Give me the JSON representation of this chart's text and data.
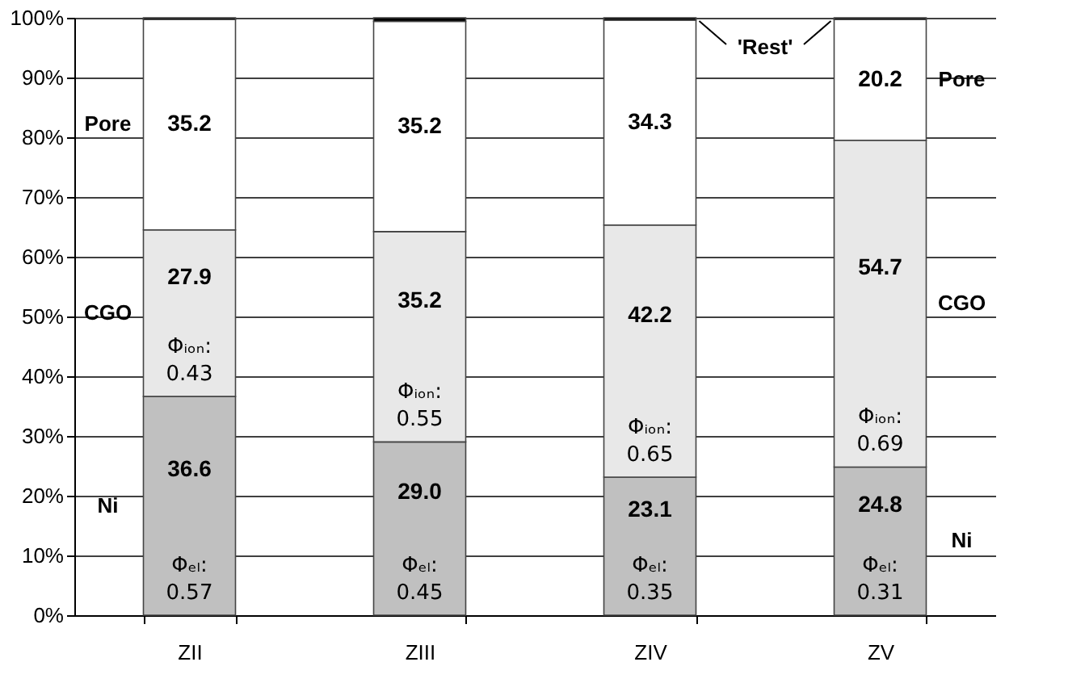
{
  "chart_data": {
    "type": "bar",
    "stacked": true,
    "categories": [
      "ZII",
      "ZIII",
      "ZIV",
      "ZV"
    ],
    "series": [
      {
        "name": "Ni",
        "color": "#c0c0c0",
        "values": [
          36.6,
          29.0,
          23.1,
          24.8
        ],
        "value_labels": [
          "36.6",
          "29.0",
          "23.1",
          "24.8"
        ]
      },
      {
        "name": "CGO",
        "color": "#e8e8e8",
        "values": [
          27.9,
          35.2,
          42.2,
          54.7
        ],
        "value_labels": [
          "27.9",
          "35.2",
          "42.2",
          "54.7"
        ]
      },
      {
        "name": "Pore",
        "color": "#ffffff",
        "values": [
          35.2,
          35.2,
          34.3,
          20.2
        ],
        "value_labels": [
          "35.2",
          "35.2",
          "34.3",
          "20.2"
        ]
      },
      {
        "color": "#000000",
        "values": [
          0.3,
          0.6,
          0.4,
          0.3
        ]
      }
    ],
    "ylim": [
      0,
      100
    ],
    "yticks": [
      {
        "value": 0,
        "label": "0%"
      },
      {
        "value": 10,
        "label": "10%"
      },
      {
        "value": 20,
        "label": "20%"
      },
      {
        "value": 30,
        "label": "30%"
      },
      {
        "value": 40,
        "label": "40%"
      },
      {
        "value": 50,
        "label": "50%"
      },
      {
        "value": 60,
        "label": "60%"
      },
      {
        "value": 70,
        "label": "70%"
      },
      {
        "value": 80,
        "label": "80%"
      },
      {
        "value": 90,
        "label": "90%"
      },
      {
        "value": 100,
        "label": "100%"
      }
    ],
    "grid": "y",
    "legend": false,
    "annotations": [
      "Φᵢₒₙ:\n0.43",
      "Φᵢₒₙ:\n0.55",
      "Φᵢₒₙ:\n0.65",
      "Φᵢₒₙ:\n0.69",
      "Φₑₗ:\n0.57",
      "Φₑₗ:\n0.45",
      "Φₑₗ:\n0.35",
      "Φₑₗ:\n0.31",
      "'Rest'"
    ]
  }
}
